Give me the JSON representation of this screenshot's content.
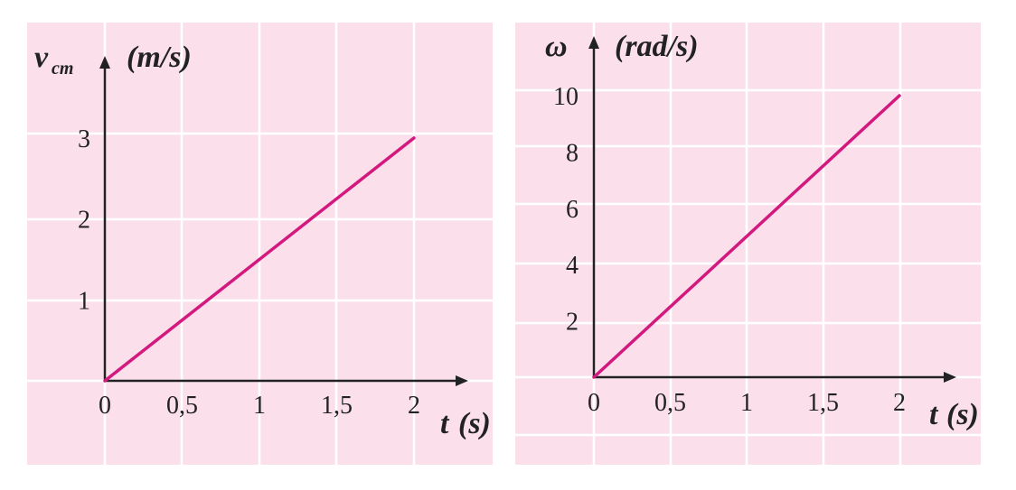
{
  "chart_data": [
    {
      "type": "line",
      "y_symbol": "v",
      "y_subscript": "cm",
      "y_unit": "(m/s)",
      "x_symbol": "t",
      "x_unit": "(s)",
      "x_ticks": [
        "0",
        "0,5",
        "1",
        "1,5",
        "2"
      ],
      "y_ticks": [
        "1",
        "2",
        "3"
      ],
      "xlim": [
        0,
        2.3
      ],
      "ylim": [
        0,
        3.8
      ],
      "grid": true,
      "series": [
        {
          "x": [
            0,
            2
          ],
          "y": [
            0,
            3
          ]
        }
      ]
    },
    {
      "type": "line",
      "y_symbol": "ω",
      "y_unit": "(rad/s)",
      "x_symbol": "t",
      "x_unit": "(s)",
      "x_ticks": [
        "0",
        "0,5",
        "1",
        "1,5",
        "2"
      ],
      "y_ticks": [
        "2",
        "4",
        "6",
        "8",
        "10"
      ],
      "xlim": [
        0,
        2.3
      ],
      "ylim": [
        0,
        11
      ],
      "grid": true,
      "series": [
        {
          "x": [
            0,
            2
          ],
          "y": [
            0,
            10
          ]
        }
      ]
    }
  ],
  "colors": {
    "panel_background": "#fbe0ec",
    "grid": "#ffffff",
    "axis": "#222222",
    "line": "#d4197e"
  }
}
